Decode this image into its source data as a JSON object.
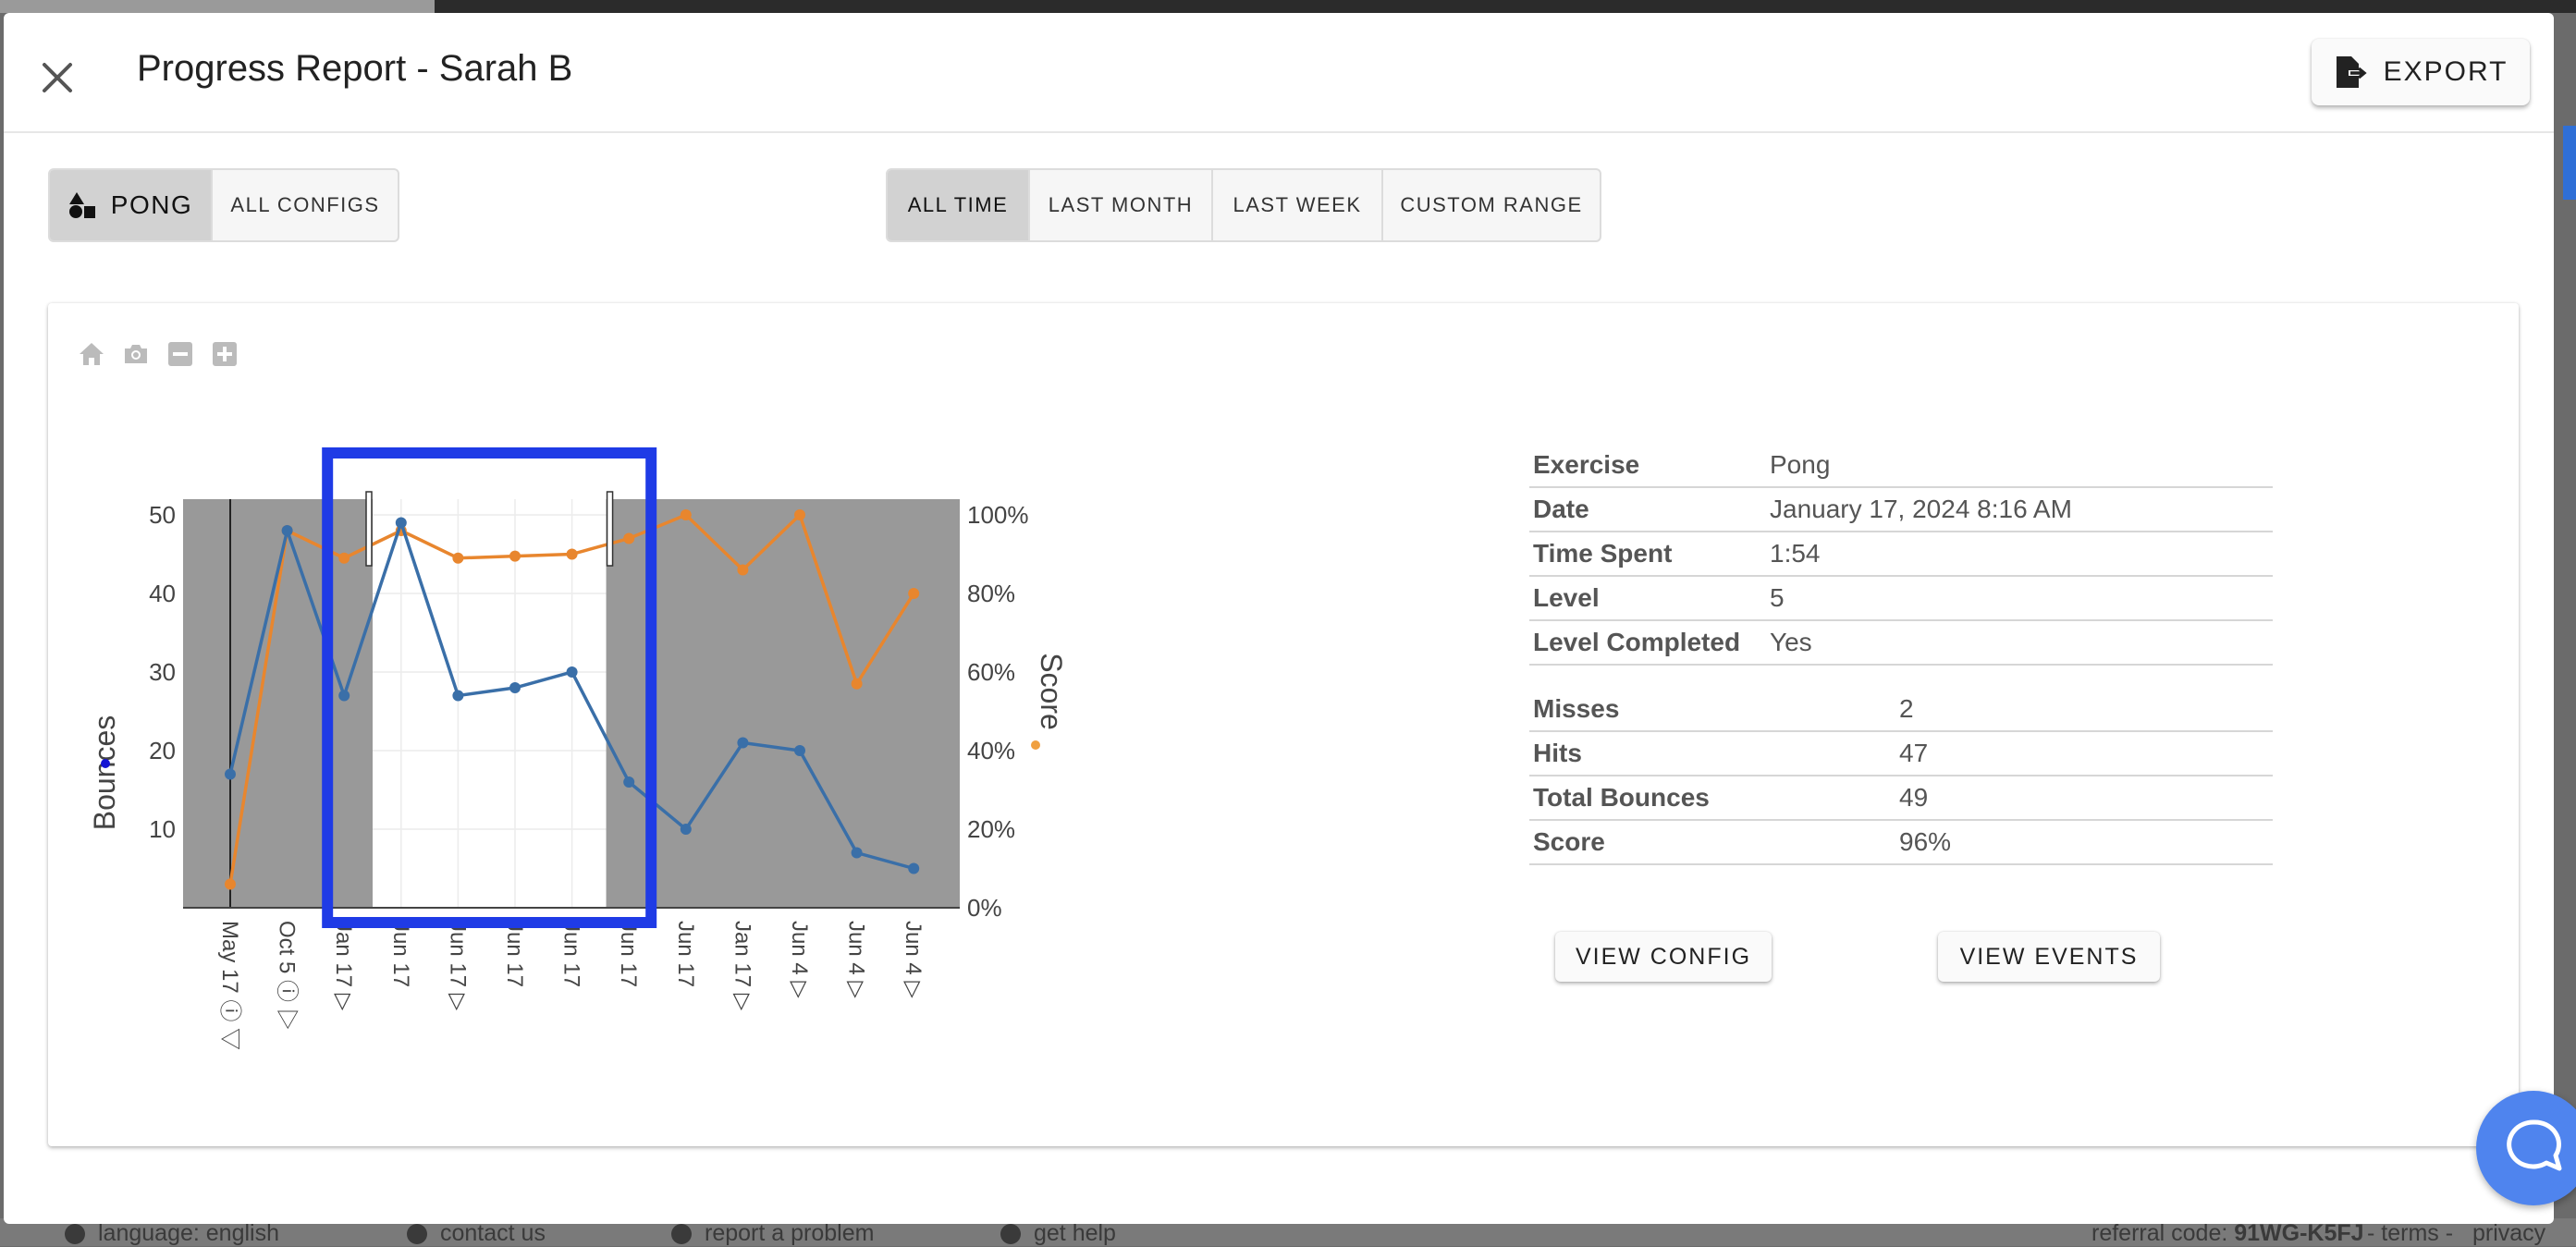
{
  "dialog": {
    "title": "Progress Report - Sarah B",
    "export_label": "EXPORT"
  },
  "filters": {
    "game_buttons": [
      {
        "label": "PONG",
        "icon": "shapes-icon",
        "active": true
      },
      {
        "label": "ALL CONFIGS",
        "active": false
      }
    ],
    "time_buttons": [
      {
        "label": "ALL TIME",
        "active": true
      },
      {
        "label": "LAST MONTH",
        "active": false
      },
      {
        "label": "LAST WEEK",
        "active": false
      },
      {
        "label": "CUSTOM RANGE",
        "active": false
      }
    ]
  },
  "modebar": [
    "home-icon",
    "camera-icon",
    "zoom-out-icon",
    "zoom-in-icon"
  ],
  "chart_data": {
    "type": "line",
    "categories": [
      "May 17",
      "Oct 5",
      "Jan 17",
      "Jun 17",
      "Jun 17",
      "Jun 17",
      "Jun 17",
      "Jun 17",
      "Jun 17",
      "Jan 17",
      "Jun 4",
      "Jun 4",
      "Jun 4"
    ],
    "category_markers": [
      "ⓘ ▽",
      "ⓘ ▷",
      "▷",
      "",
      "▷",
      "",
      "",
      "",
      "",
      "▷",
      "▷",
      "▷",
      "▷"
    ],
    "series": [
      {
        "name": "Bounces",
        "axis": "left",
        "color": "#3a6fa8",
        "values": [
          17,
          48,
          27,
          49,
          27,
          28,
          30,
          16,
          10,
          21,
          20,
          7,
          5
        ]
      },
      {
        "name": "Score",
        "axis": "right",
        "color": "#e8862e",
        "values": [
          6,
          96,
          89,
          96,
          89,
          89.5,
          90,
          94,
          100,
          86,
          100,
          57,
          80
        ]
      }
    ],
    "ylabel": "Bounces",
    "y2label": "Score",
    "ylim": [
      0,
      52
    ],
    "yticks": [
      10,
      20,
      30,
      40,
      50
    ],
    "y2lim": [
      0,
      104
    ],
    "y2ticks": [
      "0%",
      "20%",
      "40%",
      "60%",
      "80%",
      "100%"
    ],
    "y2tick_values": [
      0,
      20,
      40,
      60,
      80,
      100
    ],
    "selected_range": [
      2.5,
      6.6
    ],
    "highlight_box": [
      2.0,
      7.0
    ],
    "highlight_color": "#1f3be6",
    "shade_color": "#999999"
  },
  "details": {
    "group1": [
      {
        "label": "Exercise",
        "value": "Pong"
      },
      {
        "label": "Date",
        "value": "January 17, 2024 8:16 AM"
      },
      {
        "label": "Time Spent",
        "value": "1:54"
      },
      {
        "label": "Level",
        "value": "5"
      },
      {
        "label": "Level Completed",
        "value": "Yes"
      }
    ],
    "group2": [
      {
        "label": "Misses",
        "value": "2"
      },
      {
        "label": "Hits",
        "value": "47"
      },
      {
        "label": "Total Bounces",
        "value": "49"
      },
      {
        "label": "Score",
        "value": "96%"
      }
    ]
  },
  "actions": {
    "view_config": "VIEW CONFIG",
    "view_events": "VIEW EVENTS"
  },
  "footer": {
    "language": "language: english",
    "contact": "contact us",
    "report": "report a problem",
    "help": "get help",
    "referral_label": "referral code:",
    "referral_code": "91WG-K5FJ",
    "terms": "terms",
    "privacy": "privacy"
  }
}
